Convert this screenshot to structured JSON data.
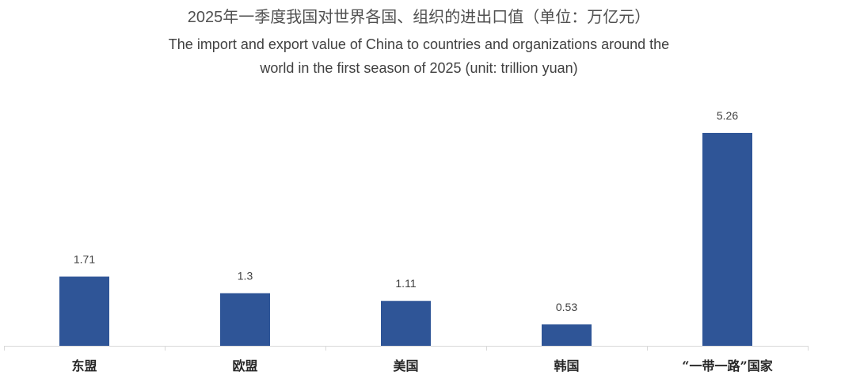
{
  "chart_data": {
    "type": "bar",
    "title": "2025年一季度我国对世界各国、组织的进出口值（单位：万亿元）",
    "subtitle": [
      "The import and export value of China to countries and organizations around the",
      "world in the first season of 2025 (unit: trillion yuan)"
    ],
    "categories": [
      "东盟",
      "欧盟",
      "美国",
      "韩国",
      "“一带一路”国家"
    ],
    "values": [
      1.71,
      1.3,
      1.11,
      0.53,
      5.26
    ],
    "show_data_labels": true,
    "grid": false,
    "legend": "none",
    "colors": {
      "bar": "#2F5597",
      "axis": "#D9D9D9",
      "text": "#404040"
    }
  }
}
